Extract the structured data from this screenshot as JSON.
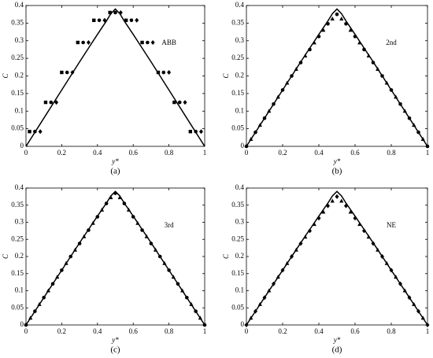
{
  "chart_data": [
    {
      "type": "line",
      "title": "ABB",
      "caption": "(a)",
      "xlabel": "y*",
      "ylabel": "C",
      "xlim": [
        0,
        1
      ],
      "ylim": [
        0,
        0.4
      ],
      "xticks": [
        0,
        0.2,
        0.4,
        0.6,
        0.8,
        1
      ],
      "yticks": [
        0,
        0.05,
        0.1,
        0.15,
        0.2,
        0.25,
        0.3,
        0.35,
        0.4
      ],
      "series": [
        {
          "style": "line",
          "color": "#000000",
          "x": [
            0,
            0.1,
            0.2,
            0.3,
            0.35,
            0.4,
            0.45,
            0.475,
            0.5,
            0.525,
            0.55,
            0.6,
            0.65,
            0.7,
            0.8,
            0.9,
            1
          ],
          "values": [
            0,
            0.08,
            0.16,
            0.24,
            0.279,
            0.318,
            0.356,
            0.377,
            0.39,
            0.377,
            0.356,
            0.318,
            0.279,
            0.24,
            0.16,
            0.08,
            0
          ]
        },
        {
          "style": "square",
          "color": "#000000",
          "x": [
            0.02,
            0.11,
            0.2,
            0.29,
            0.38,
            0.47,
            0.56,
            0.65,
            0.74,
            0.83,
            0.92
          ],
          "values": [
            0.042,
            0.125,
            0.21,
            0.295,
            0.358,
            0.38,
            0.358,
            0.295,
            0.21,
            0.125,
            0.042
          ]
        },
        {
          "style": "circle",
          "color": "#000000",
          "x": [
            0.05,
            0.14,
            0.23,
            0.32,
            0.41,
            0.5,
            0.59,
            0.68,
            0.77,
            0.86,
            0.95
          ],
          "values": [
            0.042,
            0.125,
            0.21,
            0.295,
            0.358,
            0.38,
            0.358,
            0.295,
            0.21,
            0.125,
            0.042
          ]
        },
        {
          "style": "diamond",
          "color": "#000000",
          "x": [
            0.08,
            0.17,
            0.26,
            0.35,
            0.44,
            0.53,
            0.62,
            0.71,
            0.8,
            0.89,
            0.98
          ],
          "values": [
            0.042,
            0.125,
            0.21,
            0.295,
            0.358,
            0.38,
            0.358,
            0.295,
            0.21,
            0.125,
            0.042
          ]
        }
      ]
    },
    {
      "type": "line",
      "title": "2nd",
      "caption": "(b)",
      "xlabel": "y*",
      "ylabel": "C",
      "xlim": [
        0,
        1
      ],
      "ylim": [
        0,
        0.4
      ],
      "xticks": [
        0,
        0.2,
        0.4,
        0.6,
        0.8,
        1
      ],
      "yticks": [
        0,
        0.05,
        0.1,
        0.15,
        0.2,
        0.25,
        0.3,
        0.35,
        0.4
      ],
      "series": [
        {
          "style": "line",
          "color": "#000000",
          "x": [
            0,
            0.1,
            0.2,
            0.3,
            0.35,
            0.4,
            0.45,
            0.475,
            0.5,
            0.525,
            0.55,
            0.6,
            0.65,
            0.7,
            0.8,
            0.9,
            1
          ],
          "values": [
            0,
            0.08,
            0.16,
            0.24,
            0.279,
            0.318,
            0.356,
            0.377,
            0.39,
            0.377,
            0.356,
            0.318,
            0.279,
            0.24,
            0.16,
            0.08,
            0
          ]
        },
        {
          "style": "circle",
          "color": "#000000",
          "x": [
            0,
            0.05,
            0.1,
            0.15,
            0.2,
            0.25,
            0.3,
            0.35,
            0.4,
            0.45,
            0.5,
            0.55,
            0.6,
            0.65,
            0.7,
            0.75,
            0.8,
            0.85,
            0.9,
            0.95,
            1
          ],
          "values": [
            0,
            0.04,
            0.08,
            0.12,
            0.16,
            0.2,
            0.238,
            0.275,
            0.312,
            0.348,
            0.375,
            0.348,
            0.312,
            0.275,
            0.238,
            0.2,
            0.16,
            0.12,
            0.08,
            0.04,
            0
          ]
        },
        {
          "style": "triangle",
          "color": "#000000",
          "x": [
            0.025,
            0.075,
            0.125,
            0.175,
            0.225,
            0.275,
            0.325,
            0.375,
            0.425,
            0.475,
            0.525,
            0.575,
            0.625,
            0.675,
            0.725,
            0.775,
            0.825,
            0.875,
            0.925,
            0.975
          ],
          "values": [
            0.02,
            0.06,
            0.1,
            0.14,
            0.18,
            0.219,
            0.257,
            0.294,
            0.33,
            0.362,
            0.362,
            0.33,
            0.294,
            0.257,
            0.219,
            0.18,
            0.14,
            0.1,
            0.06,
            0.02
          ]
        }
      ]
    },
    {
      "type": "line",
      "title": "3rd",
      "caption": "(c)",
      "xlabel": "y*",
      "ylabel": "C",
      "xlim": [
        0,
        1
      ],
      "ylim": [
        0,
        0.4
      ],
      "xticks": [
        0,
        0.2,
        0.4,
        0.6,
        0.8,
        1
      ],
      "yticks": [
        0,
        0.05,
        0.1,
        0.15,
        0.2,
        0.25,
        0.3,
        0.35,
        0.4
      ],
      "series": [
        {
          "style": "line",
          "color": "#000000",
          "x": [
            0,
            0.1,
            0.2,
            0.3,
            0.35,
            0.4,
            0.45,
            0.475,
            0.5,
            0.525,
            0.55,
            0.6,
            0.65,
            0.7,
            0.8,
            0.9,
            1
          ],
          "values": [
            0,
            0.08,
            0.16,
            0.24,
            0.279,
            0.318,
            0.356,
            0.377,
            0.39,
            0.377,
            0.356,
            0.318,
            0.279,
            0.24,
            0.16,
            0.08,
            0
          ]
        },
        {
          "style": "circle",
          "color": "#000000",
          "x": [
            0,
            0.05,
            0.1,
            0.15,
            0.2,
            0.25,
            0.3,
            0.35,
            0.4,
            0.45,
            0.5,
            0.55,
            0.6,
            0.65,
            0.7,
            0.75,
            0.8,
            0.85,
            0.9,
            0.95,
            1
          ],
          "values": [
            0,
            0.04,
            0.08,
            0.12,
            0.16,
            0.2,
            0.238,
            0.277,
            0.316,
            0.355,
            0.385,
            0.355,
            0.316,
            0.277,
            0.238,
            0.2,
            0.16,
            0.12,
            0.08,
            0.04,
            0
          ]
        },
        {
          "style": "triangle",
          "color": "#000000",
          "x": [
            0.025,
            0.075,
            0.125,
            0.175,
            0.225,
            0.275,
            0.325,
            0.375,
            0.425,
            0.475,
            0.525,
            0.575,
            0.625,
            0.675,
            0.725,
            0.775,
            0.825,
            0.875,
            0.925,
            0.975
          ],
          "values": [
            0.02,
            0.06,
            0.1,
            0.14,
            0.18,
            0.219,
            0.258,
            0.297,
            0.336,
            0.372,
            0.372,
            0.336,
            0.297,
            0.258,
            0.219,
            0.18,
            0.14,
            0.1,
            0.06,
            0.02
          ]
        }
      ]
    },
    {
      "type": "line",
      "title": "NE",
      "caption": "(d)",
      "xlabel": "y*",
      "ylabel": "C",
      "xlim": [
        0,
        1
      ],
      "ylim": [
        0,
        0.4
      ],
      "xticks": [
        0,
        0.2,
        0.4,
        0.6,
        0.8,
        1
      ],
      "yticks": [
        0,
        0.05,
        0.1,
        0.15,
        0.2,
        0.25,
        0.3,
        0.35,
        0.4
      ],
      "series": [
        {
          "style": "line",
          "color": "#000000",
          "x": [
            0,
            0.1,
            0.2,
            0.3,
            0.35,
            0.4,
            0.45,
            0.475,
            0.5,
            0.525,
            0.55,
            0.6,
            0.65,
            0.7,
            0.8,
            0.9,
            1
          ],
          "values": [
            0,
            0.08,
            0.16,
            0.24,
            0.279,
            0.318,
            0.356,
            0.377,
            0.39,
            0.377,
            0.356,
            0.318,
            0.279,
            0.24,
            0.16,
            0.08,
            0
          ]
        },
        {
          "style": "diamond",
          "color": "#000000",
          "x": [
            0,
            0.05,
            0.1,
            0.15,
            0.2,
            0.25,
            0.3,
            0.35,
            0.4,
            0.45,
            0.5,
            0.55,
            0.6,
            0.65,
            0.7,
            0.75,
            0.8,
            0.85,
            0.9,
            0.95,
            1
          ],
          "values": [
            0,
            0.04,
            0.08,
            0.12,
            0.16,
            0.2,
            0.238,
            0.275,
            0.312,
            0.348,
            0.375,
            0.348,
            0.312,
            0.275,
            0.238,
            0.2,
            0.16,
            0.12,
            0.08,
            0.04,
            0
          ]
        },
        {
          "style": "triangle",
          "color": "#000000",
          "x": [
            0.025,
            0.075,
            0.125,
            0.175,
            0.225,
            0.275,
            0.325,
            0.375,
            0.425,
            0.475,
            0.525,
            0.575,
            0.625,
            0.675,
            0.725,
            0.775,
            0.825,
            0.875,
            0.925,
            0.975
          ],
          "values": [
            0.02,
            0.06,
            0.1,
            0.14,
            0.18,
            0.219,
            0.257,
            0.294,
            0.33,
            0.362,
            0.362,
            0.33,
            0.294,
            0.257,
            0.219,
            0.18,
            0.14,
            0.1,
            0.06,
            0.02
          ]
        }
      ]
    }
  ]
}
